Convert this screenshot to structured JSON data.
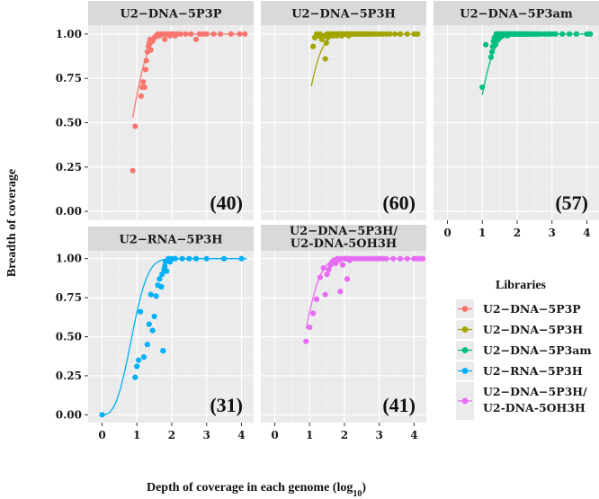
{
  "chart_data": {
    "type": "scatter",
    "xlabel": "Depth of coverage in each genome (log",
    "xlabel_sub": "10",
    "xlabel_end": ")",
    "ylabel": "Breadth of coverage",
    "xlim": [
      -0.4,
      4.35
    ],
    "ylim": [
      -0.05,
      1.05
    ],
    "x_ticks": [
      "0",
      "1",
      "2",
      "3",
      "4"
    ],
    "y_ticks": [
      "0.00",
      "0.25",
      "0.50",
      "0.75",
      "1.00"
    ],
    "legend_title": "Libraries",
    "series": [
      {
        "name": "U2−DNA−5P3P",
        "strip": [
          "U2−DNA−5P3P"
        ],
        "color": "#F8766D",
        "count": "(40)",
        "curve": [
          0.88,
          4.15
        ],
        "points": [
          [
            0.88,
            0.23
          ],
          [
            0.95,
            0.48
          ],
          [
            1.12,
            0.65
          ],
          [
            1.15,
            0.7
          ],
          [
            1.18,
            0.73
          ],
          [
            1.22,
            0.7
          ],
          [
            1.25,
            0.8
          ],
          [
            1.27,
            0.85
          ],
          [
            1.3,
            0.9
          ],
          [
            1.33,
            0.93
          ],
          [
            1.35,
            0.95
          ],
          [
            1.38,
            0.97
          ],
          [
            1.4,
            0.91
          ],
          [
            1.45,
            0.96
          ],
          [
            1.5,
            0.98
          ],
          [
            1.55,
            0.99
          ],
          [
            1.6,
            1.0
          ],
          [
            1.65,
            0.99
          ],
          [
            1.7,
            1.0
          ],
          [
            1.75,
            1.0
          ],
          [
            1.8,
            0.97
          ],
          [
            1.85,
            1.0
          ],
          [
            1.9,
            1.0
          ],
          [
            1.95,
            0.99
          ],
          [
            2.0,
            1.0
          ],
          [
            2.05,
            1.0
          ],
          [
            2.1,
            0.99
          ],
          [
            2.15,
            1.0
          ],
          [
            2.25,
            1.0
          ],
          [
            2.4,
            1.0
          ],
          [
            2.55,
            1.0
          ],
          [
            2.7,
            0.97
          ],
          [
            2.8,
            1.0
          ],
          [
            2.9,
            1.0
          ],
          [
            3.0,
            1.0
          ],
          [
            3.2,
            1.0
          ],
          [
            3.4,
            1.0
          ],
          [
            3.7,
            1.0
          ],
          [
            3.95,
            1.0
          ],
          [
            4.1,
            1.0
          ]
        ]
      },
      {
        "name": "U2−DNA−5P3H",
        "strip": [
          "U2−DNA−5P3H"
        ],
        "color": "#A3A500",
        "count": "(60)",
        "curve": [
          1.05,
          4.15
        ],
        "points": [
          [
            1.1,
            0.93
          ],
          [
            1.15,
            0.98
          ],
          [
            1.2,
            1.0
          ],
          [
            1.25,
            0.99
          ],
          [
            1.3,
            1.0
          ],
          [
            1.35,
            0.97
          ],
          [
            1.4,
            0.99
          ],
          [
            1.45,
            0.86
          ],
          [
            1.48,
            0.95
          ],
          [
            1.5,
            1.0
          ],
          [
            1.52,
            0.98
          ],
          [
            1.55,
            1.0
          ],
          [
            1.58,
            1.0
          ],
          [
            1.6,
            0.99
          ],
          [
            1.62,
            1.0
          ],
          [
            1.65,
            1.0
          ],
          [
            1.68,
            0.99
          ],
          [
            1.7,
            1.0
          ],
          [
            1.72,
            1.0
          ],
          [
            1.75,
            1.0
          ],
          [
            1.78,
            0.99
          ],
          [
            1.8,
            1.0
          ],
          [
            1.82,
            1.0
          ],
          [
            1.85,
            1.0
          ],
          [
            1.88,
            1.0
          ],
          [
            1.9,
            1.0
          ],
          [
            1.92,
            0.99
          ],
          [
            1.95,
            1.0
          ],
          [
            1.98,
            1.0
          ],
          [
            2.0,
            1.0
          ],
          [
            2.03,
            1.0
          ],
          [
            2.06,
            1.0
          ],
          [
            2.09,
            1.0
          ],
          [
            2.12,
            0.99
          ],
          [
            2.15,
            1.0
          ],
          [
            2.18,
            1.0
          ],
          [
            2.21,
            1.0
          ],
          [
            2.24,
            1.0
          ],
          [
            2.27,
            1.0
          ],
          [
            2.3,
            1.0
          ],
          [
            2.35,
            1.0
          ],
          [
            2.4,
            1.0
          ],
          [
            2.45,
            1.0
          ],
          [
            2.5,
            1.0
          ],
          [
            2.55,
            1.0
          ],
          [
            2.6,
            1.0
          ],
          [
            2.65,
            1.0
          ],
          [
            2.7,
            1.0
          ],
          [
            2.75,
            1.0
          ],
          [
            2.8,
            1.0
          ],
          [
            2.9,
            1.0
          ],
          [
            3.0,
            1.0
          ],
          [
            3.1,
            1.0
          ],
          [
            3.2,
            1.0
          ],
          [
            3.3,
            1.0
          ],
          [
            3.45,
            1.0
          ],
          [
            3.6,
            1.0
          ],
          [
            3.8,
            1.0
          ],
          [
            4.0,
            1.0
          ],
          [
            4.1,
            1.0
          ]
        ]
      },
      {
        "name": "U2−DNA−5P3am",
        "strip": [
          "U2−DNA−5P3am"
        ],
        "color": "#00BF7D",
        "count": "(57)",
        "curve": [
          1.0,
          4.15
        ],
        "points": [
          [
            1.0,
            0.7
          ],
          [
            1.1,
            0.94
          ],
          [
            1.25,
            0.87
          ],
          [
            1.28,
            0.9
          ],
          [
            1.3,
            0.93
          ],
          [
            1.32,
            0.96
          ],
          [
            1.35,
            0.98
          ],
          [
            1.38,
            0.94
          ],
          [
            1.4,
            1.0
          ],
          [
            1.42,
            0.97
          ],
          [
            1.45,
            1.0
          ],
          [
            1.48,
            1.0
          ],
          [
            1.5,
            0.98
          ],
          [
            1.52,
            1.0
          ],
          [
            1.55,
            1.0
          ],
          [
            1.58,
            0.99
          ],
          [
            1.6,
            1.0
          ],
          [
            1.62,
            1.0
          ],
          [
            1.65,
            1.0
          ],
          [
            1.68,
            1.0
          ],
          [
            1.7,
            1.0
          ],
          [
            1.72,
            0.99
          ],
          [
            1.75,
            1.0
          ],
          [
            1.78,
            1.0
          ],
          [
            1.8,
            1.0
          ],
          [
            1.83,
            1.0
          ],
          [
            1.86,
            1.0
          ],
          [
            1.89,
            1.0
          ],
          [
            1.92,
            1.0
          ],
          [
            1.95,
            1.0
          ],
          [
            1.98,
            1.0
          ],
          [
            2.01,
            1.0
          ],
          [
            2.04,
            1.0
          ],
          [
            2.07,
            1.0
          ],
          [
            2.1,
            1.0
          ],
          [
            2.13,
            1.0
          ],
          [
            2.16,
            1.0
          ],
          [
            2.2,
            1.0
          ],
          [
            2.24,
            1.0
          ],
          [
            2.28,
            1.0
          ],
          [
            2.32,
            1.0
          ],
          [
            2.36,
            1.0
          ],
          [
            2.4,
            1.0
          ],
          [
            2.45,
            1.0
          ],
          [
            2.5,
            1.0
          ],
          [
            2.55,
            1.0
          ],
          [
            2.6,
            1.0
          ],
          [
            2.7,
            1.0
          ],
          [
            2.8,
            1.0
          ],
          [
            2.9,
            1.0
          ],
          [
            3.0,
            1.0
          ],
          [
            3.1,
            1.0
          ],
          [
            3.3,
            1.0
          ],
          [
            3.5,
            1.0
          ],
          [
            3.7,
            1.0
          ],
          [
            4.0,
            1.0
          ],
          [
            4.1,
            1.0
          ]
        ]
      },
      {
        "name": "U2−RNA−5P3H",
        "strip": [
          "U2−RNA−5P3H"
        ],
        "color": "#00B0F6",
        "count": "(31)",
        "curve": [
          0.0,
          4.15
        ],
        "points": [
          [
            0.0,
            0.0
          ],
          [
            0.95,
            0.24
          ],
          [
            1.0,
            0.31
          ],
          [
            1.05,
            0.35
          ],
          [
            1.1,
            0.66
          ],
          [
            1.2,
            0.37
          ],
          [
            1.3,
            0.45
          ],
          [
            1.35,
            0.58
          ],
          [
            1.4,
            0.77
          ],
          [
            1.45,
            0.54
          ],
          [
            1.5,
            0.63
          ],
          [
            1.55,
            0.76
          ],
          [
            1.6,
            0.83
          ],
          [
            1.65,
            0.87
          ],
          [
            1.7,
            0.82
          ],
          [
            1.72,
            0.9
          ],
          [
            1.75,
            0.41
          ],
          [
            1.78,
            0.93
          ],
          [
            1.8,
            0.95
          ],
          [
            1.82,
            0.98
          ],
          [
            1.85,
            0.92
          ],
          [
            1.9,
            1.0
          ],
          [
            1.95,
            0.98
          ],
          [
            2.0,
            1.0
          ],
          [
            2.1,
            1.0
          ],
          [
            2.3,
            1.0
          ],
          [
            2.5,
            1.0
          ],
          [
            2.7,
            1.0
          ],
          [
            3.0,
            1.0
          ],
          [
            3.5,
            1.0
          ],
          [
            4.0,
            1.0
          ]
        ]
      },
      {
        "name": "U2−DNA−5P3H/\nU2-DNA-5OH3H",
        "strip": [
          "U2−DNA−5P3H/",
          "U2-DNA-5OH3H"
        ],
        "color": "#E76BF3",
        "count": "(41)",
        "curve": [
          0.9,
          4.15
        ],
        "points": [
          [
            0.9,
            0.47
          ],
          [
            1.0,
            0.56
          ],
          [
            1.1,
            0.65
          ],
          [
            1.2,
            0.74
          ],
          [
            1.3,
            0.88
          ],
          [
            1.4,
            0.94
          ],
          [
            1.45,
            0.77
          ],
          [
            1.5,
            0.9
          ],
          [
            1.55,
            0.93
          ],
          [
            1.6,
            0.96
          ],
          [
            1.65,
            0.98
          ],
          [
            1.7,
            0.99
          ],
          [
            1.75,
            0.97
          ],
          [
            1.8,
            1.0
          ],
          [
            1.85,
            0.99
          ],
          [
            1.88,
            0.79
          ],
          [
            1.9,
            1.0
          ],
          [
            1.95,
            0.96
          ],
          [
            2.0,
            1.0
          ],
          [
            2.05,
            1.0
          ],
          [
            2.08,
            0.87
          ],
          [
            2.1,
            1.0
          ],
          [
            2.15,
            0.99
          ],
          [
            2.2,
            1.0
          ],
          [
            2.3,
            1.0
          ],
          [
            2.4,
            1.0
          ],
          [
            2.5,
            1.0
          ],
          [
            2.6,
            1.0
          ],
          [
            2.7,
            1.0
          ],
          [
            2.8,
            1.0
          ],
          [
            2.9,
            1.0
          ],
          [
            3.0,
            1.0
          ],
          [
            3.1,
            1.0
          ],
          [
            3.2,
            1.0
          ],
          [
            3.4,
            1.0
          ],
          [
            3.6,
            1.0
          ],
          [
            3.8,
            1.0
          ],
          [
            4.0,
            1.0
          ],
          [
            4.1,
            1.0
          ],
          [
            4.2,
            1.0
          ],
          [
            4.25,
            1.0
          ]
        ]
      }
    ]
  }
}
